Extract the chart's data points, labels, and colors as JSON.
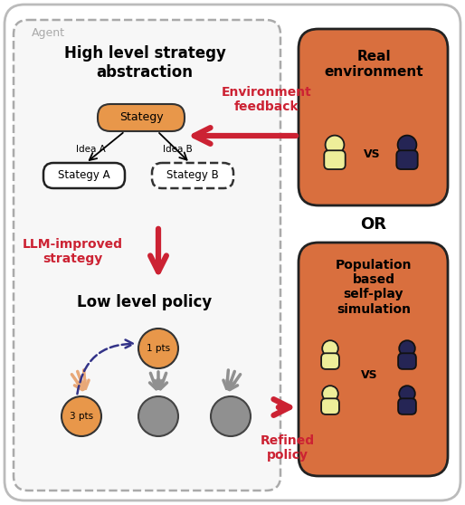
{
  "bg_color": "#ffffff",
  "orange_box": "#d96f3e",
  "agent_label": "Agent",
  "title1": "High level strategy\nabstraction",
  "title2": "Low level policy",
  "env_feedback": "Environment\nfeedback",
  "llm_improved": "LLM-improved\nstrategy",
  "refined_policy": "Refined\npolicy",
  "real_env_title": "Real\nenvironment",
  "pop_title": "Population\nbased\nself-play\nsimulation",
  "or_text": "OR",
  "stategy_label": "Stategy",
  "stategy_a_label": "Stategy A",
  "stategy_b_label": "Stategy B",
  "idea_a": "Idea A",
  "idea_b": "Idea B",
  "vs_text": "VS",
  "red_arrow": "#cc2233",
  "dark_navy": "#252555",
  "light_yellow": "#f0f0a0",
  "orange_node": "#e8974a",
  "gray_node": "#909090",
  "orange_arrow_color": "#e8a878",
  "gray_arrow_color": "#909090",
  "dashed_blue": "#333388",
  "pts1": "1 pts",
  "pts3": "3 pts"
}
